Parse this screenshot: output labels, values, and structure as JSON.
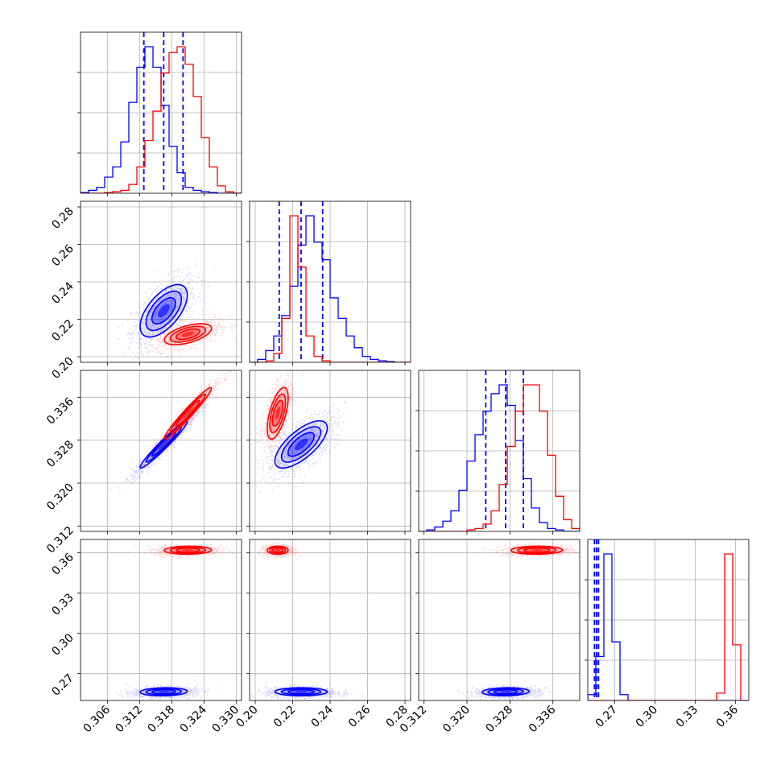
{
  "colors": {
    "series_a": "#0000ff",
    "series_b": "#ff0000",
    "grid": "#b0b0b0",
    "axis": "#000000"
  },
  "chart_data": {
    "type": "corner",
    "grid": true,
    "variables": [
      {
        "range": [
          0.301,
          0.331
        ],
        "ticks": [
          "0.306",
          "0.312",
          "0.318",
          "0.324",
          "0.330"
        ],
        "tick_values": [
          0.306,
          0.312,
          0.318,
          0.324,
          0.33
        ]
      },
      {
        "range": [
          0.197,
          0.283
        ],
        "ticks": [
          "0.20",
          "0.22",
          "0.24",
          "0.26",
          "0.28"
        ],
        "tick_values": [
          0.2,
          0.22,
          0.24,
          0.26,
          0.28
        ]
      },
      {
        "range": [
          0.311,
          0.341
        ],
        "ticks": [
          "0.312",
          "0.320",
          "0.328",
          "0.336"
        ],
        "tick_values": [
          0.312,
          0.32,
          0.328,
          0.336
        ]
      },
      {
        "range": [
          0.25,
          0.37
        ],
        "ticks": [
          "0.27",
          "0.30",
          "0.33",
          "0.36"
        ],
        "tick_values": [
          0.27,
          0.3,
          0.33,
          0.36
        ]
      }
    ],
    "series": [
      {
        "color": "#0000ff",
        "means": [
          0.3165,
          0.2245,
          0.3272,
          0.2565
        ],
        "sigmas": [
          0.0022,
          0.007,
          0.0022,
          0.0015
        ],
        "quantiles": [
          [
            0.3128,
            0.3165,
            0.3201
          ],
          [
            0.2128,
            0.2245,
            0.236
          ],
          [
            0.3235,
            0.3272,
            0.3305
          ],
          [
            0.255,
            0.2565,
            0.258
          ]
        ],
        "hist": [
          [
            0.5,
            2,
            4,
            11,
            18,
            35,
            62,
            86,
            100,
            86,
            60,
            32,
            14,
            4,
            2,
            1,
            0.5,
            0,
            0,
            0
          ],
          [
            0,
            2,
            8,
            18,
            32,
            52,
            80,
            100,
            82,
            70,
            44,
            30,
            18,
            10,
            4,
            2,
            1,
            0.5,
            0,
            0
          ],
          [
            0,
            1,
            3,
            7,
            14,
            28,
            48,
            66,
            82,
            94,
            100,
            86,
            62,
            36,
            16,
            6,
            2,
            1,
            0,
            0
          ],
          [
            4,
            30,
            100,
            40,
            4,
            0,
            0,
            0,
            0,
            0,
            0,
            0,
            0,
            0,
            0,
            0,
            0,
            0,
            0,
            0
          ]
        ]
      },
      {
        "color": "#ff0000",
        "means": [
          0.321,
          0.212,
          0.333,
          0.362
        ],
        "sigmas": [
          0.0022,
          0.0028,
          0.0024,
          0.0015
        ],
        "quantiles": [],
        "hist": [
          [
            0,
            0,
            0,
            0.5,
            1,
            2,
            6,
            18,
            36,
            56,
            82,
            96,
            100,
            88,
            66,
            38,
            18,
            5,
            1,
            0
          ],
          [
            0,
            0,
            1,
            6,
            30,
            100,
            65,
            18,
            4,
            1,
            0,
            0,
            0,
            0,
            0,
            0,
            0,
            0,
            0,
            0
          ],
          [
            0,
            0,
            0,
            0,
            0,
            0,
            1,
            2,
            5,
            14,
            32,
            58,
            82,
            100,
            100,
            82,
            52,
            24,
            8,
            2
          ],
          [
            0,
            0,
            0,
            0,
            0,
            0,
            0,
            0,
            0,
            0,
            0,
            0,
            0,
            0,
            0,
            0,
            5,
            100,
            38,
            0
          ]
        ]
      }
    ],
    "correlations": {
      "0-1": [
        0.6,
        0.55
      ],
      "0-2": [
        0.97,
        0.97
      ],
      "0-3": [
        0.1,
        0.05
      ],
      "1-2": [
        0.7,
        0.6
      ],
      "1-3": [
        0.0,
        0.0
      ],
      "2-3": [
        0.1,
        0.05
      ]
    }
  }
}
